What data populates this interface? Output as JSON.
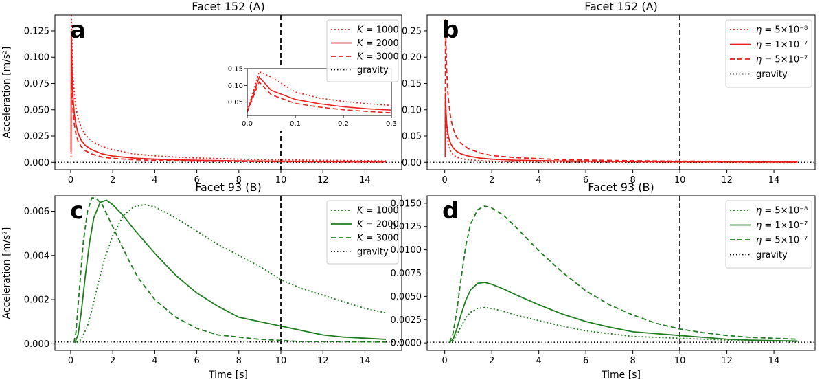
{
  "figure": {
    "xlabel": "Time [s]",
    "ylabel": "Acceleration [m/s²]",
    "vline_x": 10,
    "xlim": [
      -0.75,
      15.75
    ],
    "xticks": [
      0,
      2,
      4,
      6,
      8,
      10,
      12,
      14
    ]
  },
  "chart_data": [
    {
      "id": "a",
      "panel_label": "a",
      "type": "line",
      "title": "Facet 152 (A)",
      "color": "#e8201c",
      "ylim": [
        -0.007,
        0.14
      ],
      "yticks": [
        0.0,
        0.025,
        0.05,
        0.075,
        0.1,
        0.125
      ],
      "ytick_labels": [
        "0.000",
        "0.025",
        "0.050",
        "0.075",
        "0.100",
        "0.125"
      ],
      "show_ylabel": true,
      "show_xlabel": false,
      "gravity": 0.0,
      "legend": {
        "placement": "top-right",
        "entries": [
          {
            "style": "dotted",
            "label_prefix": "K",
            "label_value": " = 1000"
          },
          {
            "style": "solid",
            "label_prefix": "K",
            "label_value": " = 2000"
          },
          {
            "style": "dashed",
            "label_prefix": "K",
            "label_value": " = 3000"
          },
          {
            "style": "gravity",
            "label_prefix": "",
            "label_value": "gravity"
          }
        ]
      },
      "series": [
        {
          "name": "K = 1000",
          "style": "dotted",
          "x": [
            0.02,
            0.03,
            0.05,
            0.08,
            0.12,
            0.18,
            0.25,
            0.35,
            0.5,
            0.7,
            1,
            1.5,
            2,
            3,
            4,
            5,
            6,
            8,
            10,
            12,
            15
          ],
          "y": [
            0.005,
            0.141,
            0.125,
            0.1,
            0.08,
            0.064,
            0.052,
            0.042,
            0.033,
            0.026,
            0.02,
            0.015,
            0.012,
            0.008,
            0.0062,
            0.005,
            0.0042,
            0.003,
            0.0024,
            0.0019,
            0.0014
          ]
        },
        {
          "name": "K = 2000",
          "style": "solid",
          "x": [
            0.02,
            0.03,
            0.05,
            0.08,
            0.12,
            0.18,
            0.25,
            0.35,
            0.5,
            0.7,
            1,
            1.5,
            2,
            3,
            4,
            5,
            6,
            8,
            10,
            12,
            15
          ],
          "y": [
            0.012,
            0.125,
            0.1,
            0.075,
            0.058,
            0.045,
            0.036,
            0.028,
            0.021,
            0.016,
            0.012,
            0.008,
            0.006,
            0.004,
            0.003,
            0.0024,
            0.002,
            0.0014,
            0.0011,
            0.0008,
            0.0006
          ]
        },
        {
          "name": "K = 3000",
          "style": "dashed",
          "x": [
            0.02,
            0.03,
            0.05,
            0.08,
            0.12,
            0.18,
            0.25,
            0.35,
            0.5,
            0.7,
            1,
            1.5,
            2,
            3,
            4,
            5,
            6,
            8,
            10,
            12,
            15
          ],
          "y": [
            0.01,
            0.11,
            0.085,
            0.062,
            0.046,
            0.035,
            0.027,
            0.02,
            0.015,
            0.011,
            0.008,
            0.005,
            0.0038,
            0.0025,
            0.0018,
            0.0014,
            0.0011,
            0.0008,
            0.0006,
            0.0004,
            0.0003
          ]
        }
      ],
      "inset": {
        "xlim": [
          0,
          0.3
        ],
        "ylim": [
          0.01,
          0.15
        ],
        "xticks": [
          0.0,
          0.1,
          0.2,
          0.3
        ],
        "xtick_labels": [
          "0.0",
          "0.1",
          "0.2",
          "0.3"
        ],
        "yticks": [
          0.05,
          0.1,
          0.15
        ],
        "ytick_labels": [
          "0.05",
          "0.10",
          "0.15"
        ],
        "series": [
          {
            "style": "dotted",
            "x": [
              0,
              0.025,
              0.05,
              0.1,
              0.15,
              0.2,
              0.25,
              0.3
            ],
            "y": [
              0.025,
              0.141,
              0.125,
              0.08,
              0.062,
              0.052,
              0.045,
              0.04
            ]
          },
          {
            "style": "solid",
            "x": [
              0,
              0.025,
              0.05,
              0.1,
              0.15,
              0.2,
              0.25,
              0.3
            ],
            "y": [
              0.02,
              0.125,
              0.085,
              0.058,
              0.045,
              0.036,
              0.03,
              0.026
            ]
          },
          {
            "style": "dashed",
            "x": [
              0,
              0.025,
              0.05,
              0.1,
              0.15,
              0.2,
              0.25,
              0.3
            ],
            "y": [
              0.02,
              0.11,
              0.072,
              0.046,
              0.035,
              0.027,
              0.022,
              0.018
            ]
          }
        ]
      }
    },
    {
      "id": "b",
      "panel_label": "b",
      "type": "line",
      "title": "Facet 152 (A)",
      "color": "#e8201c",
      "ylim": [
        -0.014,
        0.28
      ],
      "yticks": [
        0.0,
        0.05,
        0.1,
        0.15,
        0.2,
        0.25
      ],
      "ytick_labels": [
        "0.00",
        "0.05",
        "0.10",
        "0.15",
        "0.20",
        "0.25"
      ],
      "show_ylabel": false,
      "show_xlabel": false,
      "gravity": 0.0,
      "legend": {
        "placement": "top-right",
        "entries": [
          {
            "style": "dotted",
            "label_prefix": "η",
            "label_value": " = 5×10⁻⁸"
          },
          {
            "style": "solid",
            "label_prefix": "η",
            "label_value": " = 1×10⁻⁷"
          },
          {
            "style": "dashed",
            "label_prefix": "η",
            "label_value": " = 5×10⁻⁷"
          },
          {
            "style": "gravity",
            "label_prefix": "",
            "label_value": "gravity"
          }
        ]
      },
      "series": [
        {
          "name": "η = 5×10⁻⁸",
          "style": "dotted",
          "x": [
            0.02,
            0.03,
            0.05,
            0.08,
            0.12,
            0.18,
            0.25,
            0.35,
            0.5,
            0.7,
            1,
            1.5,
            2,
            3,
            5,
            8,
            10,
            15
          ],
          "y": [
            0.01,
            0.14,
            0.1,
            0.065,
            0.045,
            0.03,
            0.021,
            0.015,
            0.01,
            0.007,
            0.005,
            0.003,
            0.002,
            0.0012,
            0.0006,
            0.0003,
            0.0002,
            0.0001
          ]
        },
        {
          "name": "η = 1×10⁻⁷",
          "style": "solid",
          "x": [
            0.02,
            0.03,
            0.05,
            0.08,
            0.12,
            0.18,
            0.25,
            0.35,
            0.5,
            0.7,
            1,
            1.5,
            2,
            3,
            5,
            8,
            10,
            15
          ],
          "y": [
            0.01,
            0.125,
            0.1,
            0.075,
            0.058,
            0.045,
            0.036,
            0.028,
            0.021,
            0.016,
            0.012,
            0.008,
            0.006,
            0.004,
            0.0024,
            0.0014,
            0.0011,
            0.0006
          ]
        },
        {
          "name": "η = 5×10⁻⁷",
          "style": "dashed",
          "x": [
            0.02,
            0.03,
            0.05,
            0.08,
            0.12,
            0.18,
            0.25,
            0.35,
            0.5,
            0.7,
            1,
            1.5,
            2,
            3,
            5,
            8,
            10,
            15
          ],
          "y": [
            0.02,
            0.272,
            0.23,
            0.18,
            0.14,
            0.11,
            0.085,
            0.065,
            0.048,
            0.036,
            0.026,
            0.018,
            0.013,
            0.009,
            0.005,
            0.003,
            0.0022,
            0.0012
          ]
        }
      ]
    },
    {
      "id": "c",
      "panel_label": "c",
      "type": "line",
      "title": "Facet 93 (B)",
      "color": "#1e7d1e",
      "ylim": [
        -0.0003,
        0.0067
      ],
      "yticks": [
        0.0,
        0.002,
        0.004,
        0.006
      ],
      "ytick_labels": [
        "0.000",
        "0.002",
        "0.004",
        "0.006"
      ],
      "show_ylabel": true,
      "show_xlabel": true,
      "gravity": 8e-05,
      "legend": {
        "placement": "top-right",
        "entries": [
          {
            "style": "dotted",
            "label_prefix": "K",
            "label_value": " = 1000"
          },
          {
            "style": "solid",
            "label_prefix": "K",
            "label_value": " = 2000"
          },
          {
            "style": "dashed",
            "label_prefix": "K",
            "label_value": " = 3000"
          },
          {
            "style": "gravity",
            "label_prefix": "",
            "label_value": "gravity"
          }
        ]
      },
      "series": [
        {
          "name": "K = 1000",
          "style": "dotted",
          "x": [
            0.3,
            0.5,
            0.8,
            1.0,
            1.3,
            1.6,
            2.0,
            2.5,
            3.0,
            3.5,
            4,
            5,
            6,
            7,
            8,
            9,
            10,
            11,
            12,
            13,
            14,
            15
          ],
          "y": [
            5e-05,
            0.0002,
            0.0008,
            0.0015,
            0.0027,
            0.0038,
            0.0049,
            0.0058,
            0.0062,
            0.0063,
            0.0062,
            0.0057,
            0.0051,
            0.0045,
            0.004,
            0.0035,
            0.0029,
            0.0025,
            0.0022,
            0.0019,
            0.0016,
            0.0014
          ]
        },
        {
          "name": "K = 2000",
          "style": "solid",
          "x": [
            0.2,
            0.35,
            0.5,
            0.7,
            0.9,
            1.1,
            1.4,
            1.7,
            2.0,
            2.5,
            3,
            4,
            5,
            6,
            7,
            8,
            9,
            10,
            11,
            12,
            13,
            14,
            15
          ],
          "y": [
            5e-05,
            0.0004,
            0.0014,
            0.0031,
            0.0046,
            0.0057,
            0.0064,
            0.0065,
            0.0063,
            0.0058,
            0.0052,
            0.0041,
            0.0031,
            0.0023,
            0.0017,
            0.0012,
            0.001,
            0.0008,
            0.0006,
            0.0004,
            0.0003,
            0.00025,
            0.0002
          ]
        },
        {
          "name": "K = 3000",
          "style": "dashed",
          "x": [
            0.15,
            0.25,
            0.4,
            0.6,
            0.8,
            1.0,
            1.2,
            1.5,
            1.8,
            2.2,
            2.7,
            3.2,
            4,
            5,
            6,
            7,
            8,
            9,
            10,
            11,
            12,
            15
          ],
          "y": [
            5e-05,
            0.0005,
            0.0023,
            0.0046,
            0.006,
            0.0066,
            0.0066,
            0.0063,
            0.0057,
            0.0049,
            0.0039,
            0.003,
            0.002,
            0.0012,
            0.0007,
            0.0004,
            0.0003,
            0.0002,
            0.00015,
            0.0001,
            0.0001,
            8e-05
          ]
        }
      ]
    },
    {
      "id": "d",
      "panel_label": "d",
      "type": "line",
      "title": "Facet 93 (B)",
      "color": "#1e7d1e",
      "ylim": [
        -0.0008,
        0.0158
      ],
      "yticks": [
        0.0,
        0.0025,
        0.005,
        0.0075,
        0.01,
        0.0125,
        0.015
      ],
      "ytick_labels": [
        "0.0000",
        "0.0025",
        "0.0050",
        "0.0075",
        "0.0100",
        "0.0125",
        "0.0150"
      ],
      "show_ylabel": false,
      "show_xlabel": true,
      "gravity": 8e-05,
      "legend": {
        "placement": "top-right",
        "entries": [
          {
            "style": "dotted",
            "label_prefix": "η",
            "label_value": " = 5×10⁻⁸"
          },
          {
            "style": "solid",
            "label_prefix": "η",
            "label_value": " = 1×10⁻⁷"
          },
          {
            "style": "dashed",
            "label_prefix": "η",
            "label_value": " = 5×10⁻⁷"
          },
          {
            "style": "gravity",
            "label_prefix": "",
            "label_value": "gravity"
          }
        ]
      },
      "series": [
        {
          "name": "η = 5×10⁻⁸",
          "style": "dotted",
          "x": [
            0.2,
            0.35,
            0.5,
            0.7,
            0.9,
            1.1,
            1.4,
            1.7,
            2.0,
            2.5,
            3,
            4,
            5,
            6,
            7,
            8,
            9,
            10,
            11,
            12,
            13,
            14,
            15
          ],
          "y": [
            5e-05,
            0.0002,
            0.0008,
            0.0018,
            0.0027,
            0.0033,
            0.0037,
            0.0038,
            0.0037,
            0.0034,
            0.003,
            0.0024,
            0.0018,
            0.0013,
            0.001,
            0.0007,
            0.0006,
            0.0005,
            0.0004,
            0.0003,
            0.00025,
            0.0002,
            0.00015
          ]
        },
        {
          "name": "η = 1×10⁻⁷",
          "style": "solid",
          "x": [
            0.2,
            0.35,
            0.5,
            0.7,
            0.9,
            1.1,
            1.4,
            1.7,
            2.0,
            2.5,
            3,
            4,
            5,
            6,
            7,
            8,
            9,
            10,
            11,
            12,
            13,
            14,
            15
          ],
          "y": [
            5e-05,
            0.0004,
            0.0014,
            0.0031,
            0.0046,
            0.0057,
            0.0064,
            0.0065,
            0.0063,
            0.0058,
            0.0052,
            0.0041,
            0.0031,
            0.0023,
            0.0017,
            0.0012,
            0.001,
            0.0008,
            0.0006,
            0.0004,
            0.0003,
            0.00025,
            0.0002
          ]
        },
        {
          "name": "η = 5×10⁻⁷",
          "style": "dashed",
          "x": [
            0.2,
            0.35,
            0.5,
            0.7,
            0.9,
            1.1,
            1.4,
            1.7,
            2.0,
            2.5,
            3,
            4,
            5,
            6,
            7,
            8,
            9,
            10,
            11,
            12,
            13,
            14,
            15
          ],
          "y": [
            5e-05,
            0.001,
            0.0032,
            0.007,
            0.0105,
            0.0128,
            0.0143,
            0.0147,
            0.0145,
            0.0137,
            0.0125,
            0.0099,
            0.0076,
            0.0056,
            0.0041,
            0.003,
            0.0021,
            0.0015,
            0.0011,
            0.0008,
            0.0006,
            0.0005,
            0.0004
          ]
        }
      ]
    }
  ]
}
